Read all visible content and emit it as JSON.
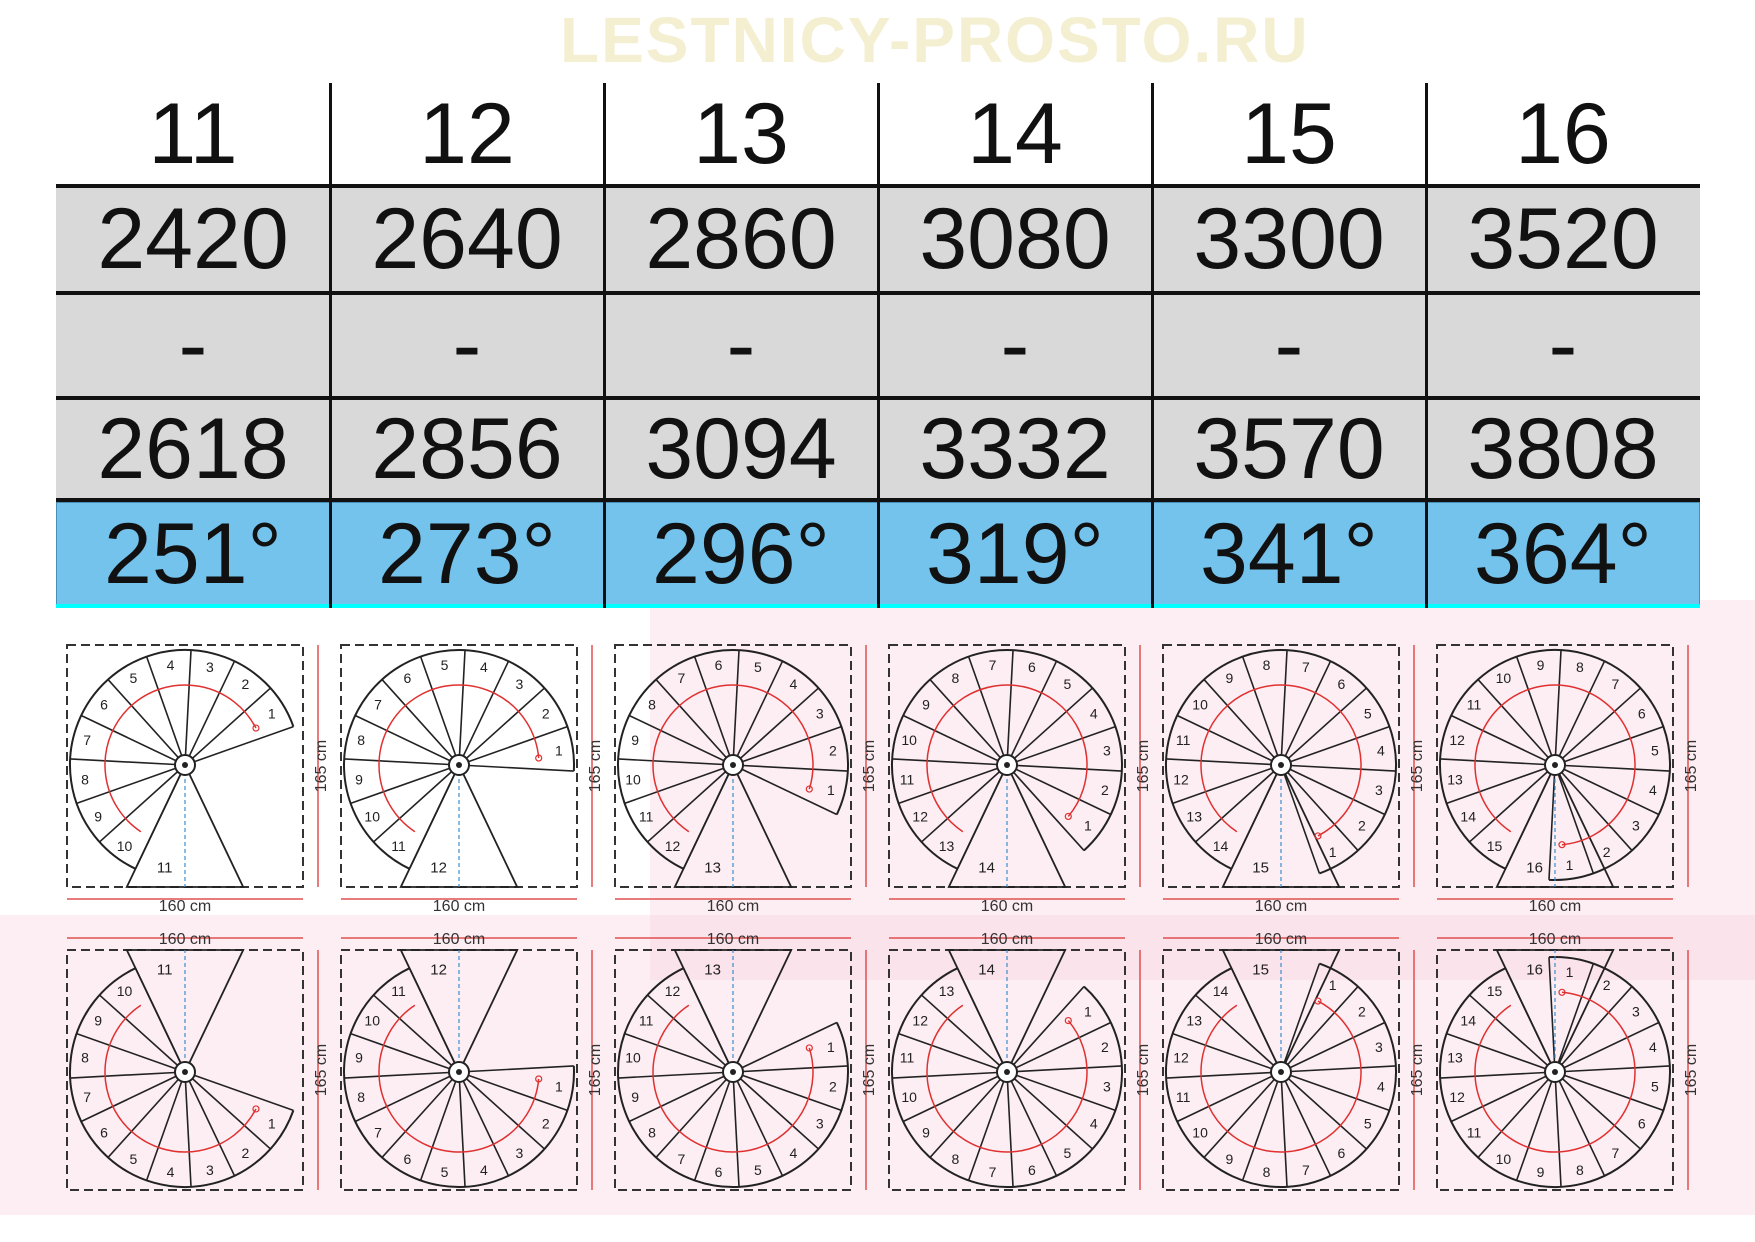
{
  "table": {
    "columns": [
      {
        "steps": "11",
        "height_min": "2420",
        "separator": "-",
        "height_max": "2618",
        "angle": "251°"
      },
      {
        "steps": "12",
        "height_min": "2640",
        "separator": "-",
        "height_max": "2856",
        "angle": "273°"
      },
      {
        "steps": "13",
        "height_min": "2860",
        "separator": "-",
        "height_max": "3094",
        "angle": "296°"
      },
      {
        "steps": "14",
        "height_min": "3080",
        "separator": "-",
        "height_max": "3332",
        "angle": "319°"
      },
      {
        "steps": "15",
        "height_min": "3300",
        "separator": "-",
        "height_max": "3570",
        "angle": "341°"
      },
      {
        "steps": "16",
        "height_min": "3520",
        "separator": "-",
        "height_max": "3808",
        "angle": "364°"
      }
    ],
    "colors": {
      "header": "#ffffff",
      "grey_rows": "#d9d9d9",
      "angle_row": "#74c3ec",
      "angle_row_border": "#00ffff"
    }
  },
  "diagrams": {
    "width_label": "160 cm",
    "height_label": "165 cm",
    "step_counts": [
      11,
      12,
      13,
      14,
      15,
      16
    ],
    "colors": {
      "lines": "#222222",
      "direction_arc": "#e03030",
      "dimension": "#e05050",
      "axis": "#3a8fd0"
    }
  },
  "watermark": "LESTNICY-PROSTO.RU"
}
